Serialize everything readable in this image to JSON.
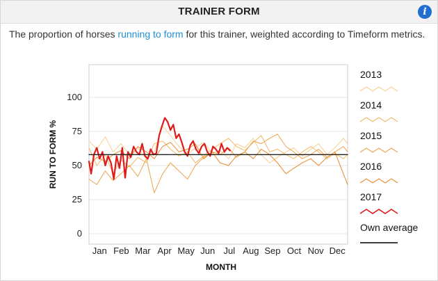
{
  "widget": {
    "title": "TRAINER FORM",
    "info_icon": "info-icon",
    "info_glyph": "i",
    "description_before": "The proportion of horses ",
    "description_link": "running to form",
    "description_after": " for this trainer, weighted according to Timeform metrics."
  },
  "chart_data": {
    "type": "line",
    "xlabel": "MONTH",
    "ylabel": "RUN TO FORM %",
    "months": [
      "Jan",
      "Feb",
      "Mar",
      "Apr",
      "May",
      "Jun",
      "Jul",
      "Aug",
      "Sep",
      "Oct",
      "Nov",
      "Dec"
    ],
    "yticks": [
      0,
      25,
      50,
      75,
      100
    ],
    "ylim": [
      0,
      125
    ],
    "x_unit": "day of year",
    "xlim": [
      1,
      366
    ],
    "grid": true,
    "legend_position": "right",
    "series": [
      {
        "name": "2013",
        "color": "#f6cf8f",
        "width": 1,
        "x": [
          1,
          12,
          24,
          35,
          46,
          58,
          70,
          82,
          93,
          105,
          116,
          128,
          140,
          151,
          163,
          175,
          186,
          198,
          209,
          221,
          233,
          244,
          256,
          267,
          279,
          290,
          302,
          314,
          325,
          337,
          348,
          360,
          366
        ],
        "y": [
          68,
          62,
          71,
          60,
          66,
          58,
          63,
          55,
          60,
          79,
          72,
          64,
          58,
          63,
          67,
          59,
          61,
          55,
          66,
          63,
          70,
          58,
          52,
          56,
          60,
          63,
          57,
          62,
          66,
          58,
          63,
          70,
          66
        ]
      },
      {
        "name": "2014",
        "color": "#f2b764",
        "width": 1,
        "x": [
          1,
          12,
          24,
          35,
          46,
          58,
          70,
          82,
          93,
          105,
          116,
          128,
          140,
          151,
          163,
          175,
          186,
          198,
          209,
          221,
          233,
          244,
          256,
          267,
          279,
          290,
          302,
          314,
          325,
          337,
          348,
          360,
          366
        ],
        "y": [
          63,
          50,
          58,
          44,
          54,
          49,
          56,
          52,
          66,
          68,
          62,
          57,
          60,
          52,
          57,
          62,
          66,
          70,
          64,
          61,
          67,
          72,
          60,
          62,
          58,
          55,
          60,
          64,
          60,
          55,
          59,
          55,
          58
        ]
      },
      {
        "name": "2015",
        "color": "#eda24a",
        "width": 1,
        "x": [
          1,
          12,
          24,
          35,
          46,
          58,
          70,
          82,
          93,
          105,
          116,
          128,
          140,
          151,
          163,
          175,
          186,
          198,
          209,
          221,
          233,
          244,
          256,
          267,
          279,
          290,
          302,
          314,
          325,
          337,
          348,
          360,
          366
        ],
        "y": [
          40,
          36,
          46,
          39,
          44,
          50,
          42,
          55,
          30,
          44,
          52,
          46,
          40,
          50,
          56,
          60,
          58,
          63,
          56,
          60,
          68,
          66,
          70,
          73,
          64,
          60,
          55,
          58,
          62,
          56,
          60,
          64,
          60
        ]
      },
      {
        "name": "2016",
        "color": "#e88a2c",
        "width": 1,
        "x": [
          1,
          12,
          24,
          35,
          46,
          58,
          70,
          82,
          93,
          105,
          116,
          128,
          140,
          151,
          163,
          175,
          186,
          198,
          209,
          221,
          233,
          244,
          256,
          267,
          279,
          290,
          302,
          314,
          325,
          337,
          348,
          360,
          366
        ],
        "y": [
          50,
          56,
          53,
          58,
          61,
          55,
          64,
          60,
          55,
          64,
          67,
          60,
          62,
          66,
          55,
          60,
          52,
          50,
          57,
          60,
          55,
          62,
          58,
          52,
          44,
          48,
          52,
          55,
          50,
          56,
          60,
          44,
          36
        ]
      },
      {
        "name": "2017",
        "color": "#e01b1b",
        "width": 2.2,
        "x": [
          1,
          4,
          8,
          12,
          16,
          20,
          24,
          28,
          32,
          36,
          40,
          44,
          48,
          52,
          56,
          60,
          64,
          68,
          72,
          76,
          80,
          84,
          88,
          92,
          96,
          100,
          104,
          108,
          112,
          116,
          120,
          124,
          128,
          132,
          136,
          140,
          144,
          148,
          152,
          156,
          160,
          164,
          168,
          172,
          176,
          180,
          184,
          188,
          192,
          196,
          200
        ],
        "y": [
          53,
          44,
          58,
          63,
          55,
          60,
          50,
          57,
          52,
          40,
          57,
          48,
          63,
          41,
          60,
          56,
          64,
          60,
          58,
          66,
          57,
          55,
          62,
          58,
          59,
          72,
          79,
          85,
          82,
          76,
          80,
          70,
          73,
          67,
          60,
          57,
          65,
          68,
          62,
          59,
          64,
          66,
          60,
          57,
          64,
          62,
          59,
          66,
          60,
          63,
          61
        ]
      },
      {
        "name": "Own average",
        "color": "#222222",
        "width": 1.3,
        "x": [
          1,
          366
        ],
        "y": [
          58,
          58
        ]
      }
    ]
  }
}
